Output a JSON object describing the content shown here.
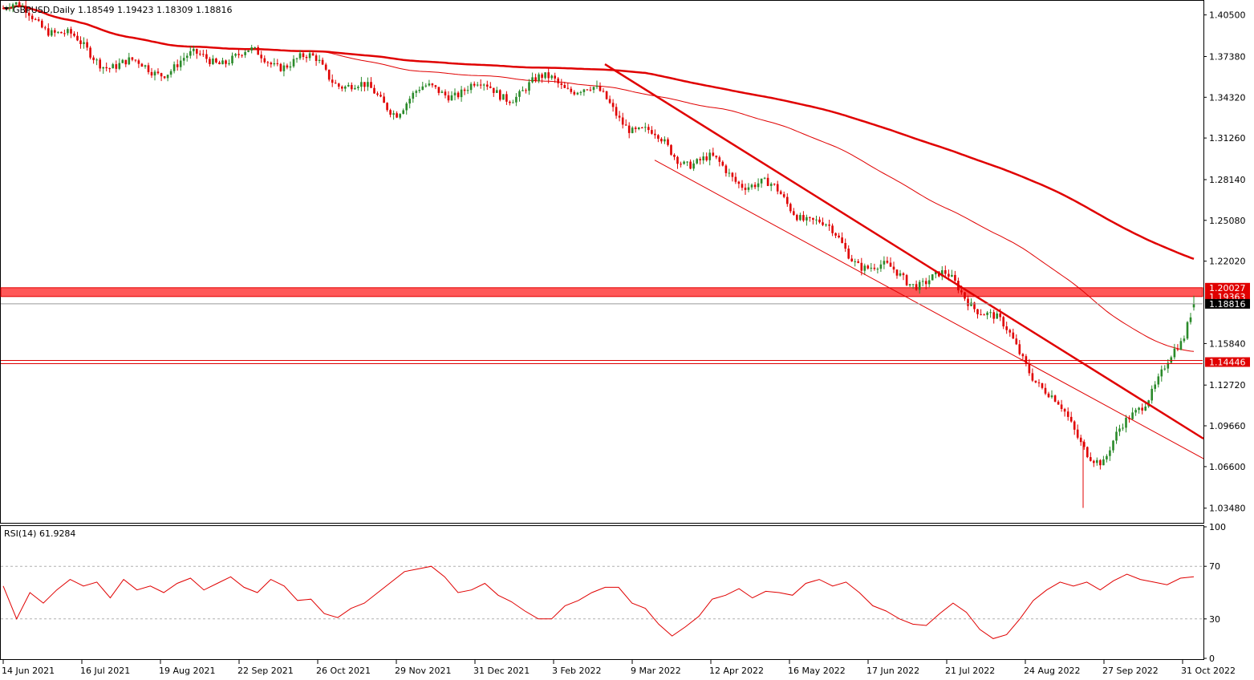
{
  "header": {
    "symbol_line": "GBPUSD,Daily  1.18549 1.19423 1.18309 1.18816",
    "rsi_line": "RSI(14) 61.9284"
  },
  "colors": {
    "bull": "#2a8a2a",
    "bear": "#e00000",
    "ma": "#e00000",
    "trend": "#e00000",
    "zone": "#ff3b3b",
    "grid": "#b0b0b0",
    "axis": "#000000"
  },
  "chart_data": [
    {
      "type": "candlestick",
      "title": "GBPUSD,Daily",
      "ohlc_last": {
        "open": 1.18549,
        "high": 1.19423,
        "low": 1.18309,
        "close": 1.18816
      },
      "ylim": [
        1.025,
        1.415
      ],
      "y_ticks": [
        1.405,
        1.3738,
        1.3432,
        1.3126,
        1.2814,
        1.2508,
        1.2202,
        1.1584,
        1.1272,
        1.0966,
        1.066,
        1.0348
      ],
      "x_tick_labels": [
        "14 Jun 2021",
        "16 Jul 2021",
        "19 Aug 2021",
        "22 Sep 2021",
        "26 Oct 2021",
        "29 Nov 2021",
        "31 Dec 2021",
        "3 Feb 2022",
        "9 Mar 2022",
        "12 Apr 2022",
        "16 May 2022",
        "17 Jun 2022",
        "21 Jul 2022",
        "24 Aug 2022",
        "27 Sep 2022",
        "31 Oct 2022"
      ],
      "anchors": [
        {
          "date": "14 Jun 2021",
          "close": 1.41
        },
        {
          "date": "16 Jul 2021",
          "close": 1.375
        },
        {
          "date": "19 Aug 2021",
          "close": 1.372
        },
        {
          "date": "22 Sep 2021",
          "close": 1.365
        },
        {
          "date": "26 Oct 2021",
          "close": 1.377
        },
        {
          "date": "29 Nov 2021",
          "close": 1.33
        },
        {
          "date": "31 Dec 2021",
          "close": 1.353
        },
        {
          "date": "3 Feb 2022",
          "close": 1.358
        },
        {
          "date": "9 Mar 2022",
          "close": 1.318
        },
        {
          "date": "12 Apr 2022",
          "close": 1.3
        },
        {
          "date": "16 May 2022",
          "close": 1.255
        },
        {
          "date": "17 Jun 2022",
          "close": 1.225
        },
        {
          "date": "21 Jul 2022",
          "close": 1.2
        },
        {
          "date": "24 Aug 2022",
          "close": 1.15
        },
        {
          "date": "27 Sep 2022",
          "close": 1.07
        },
        {
          "date": "31 Oct 2022",
          "close": 1.15
        },
        {
          "date": "last",
          "close": 1.18816
        }
      ],
      "levels": [
        {
          "label": "1.20027",
          "value": 1.20027,
          "type": "zone-top"
        },
        {
          "label": "1.19363",
          "value": 1.19363,
          "type": "zone-bottom"
        },
        {
          "label": "1.18816",
          "value": 1.18816,
          "type": "current-price"
        },
        {
          "label": "1.14446",
          "value": 1.14446,
          "type": "support"
        }
      ],
      "moving_averages": [
        {
          "period": "long",
          "style": "thick"
        },
        {
          "period": "medium",
          "style": "thin"
        }
      ],
      "trendlines": [
        {
          "from": {
            "date": "3 Feb 2022",
            "value": 1.368
          },
          "to": {
            "date": "last",
            "value": 1.087
          },
          "style": "thick"
        },
        {
          "from": {
            "date": "12 Apr 2022",
            "value": 1.296
          },
          "to": {
            "date": "last",
            "value": 1.072
          },
          "style": "thin"
        }
      ],
      "grid": false,
      "legend": "none"
    },
    {
      "type": "line",
      "title": "RSI(14)",
      "last_value": 61.9284,
      "ylim": [
        0,
        100
      ],
      "y_ticks": [
        100,
        70,
        30,
        0
      ],
      "reference_lines": [
        70,
        30
      ],
      "values": [
        55,
        30,
        50,
        42,
        52,
        60,
        55,
        58,
        46,
        60,
        52,
        55,
        50,
        57,
        61,
        52,
        57,
        62,
        54,
        50,
        60,
        55,
        44,
        45,
        34,
        31,
        38,
        42,
        50,
        58,
        66,
        68,
        70,
        62,
        50,
        52,
        57,
        48,
        43,
        36,
        30,
        30,
        40,
        44,
        50,
        54,
        54,
        42,
        38,
        26,
        17,
        24,
        32,
        45,
        48,
        53,
        46,
        51,
        50,
        48,
        57,
        60,
        55,
        58,
        50,
        40,
        36,
        30,
        26,
        25,
        34,
        42,
        35,
        22,
        15,
        18,
        30,
        44,
        52,
        58,
        55,
        58,
        52,
        59,
        64,
        60,
        58,
        56,
        61,
        62
      ],
      "grid": false
    }
  ]
}
